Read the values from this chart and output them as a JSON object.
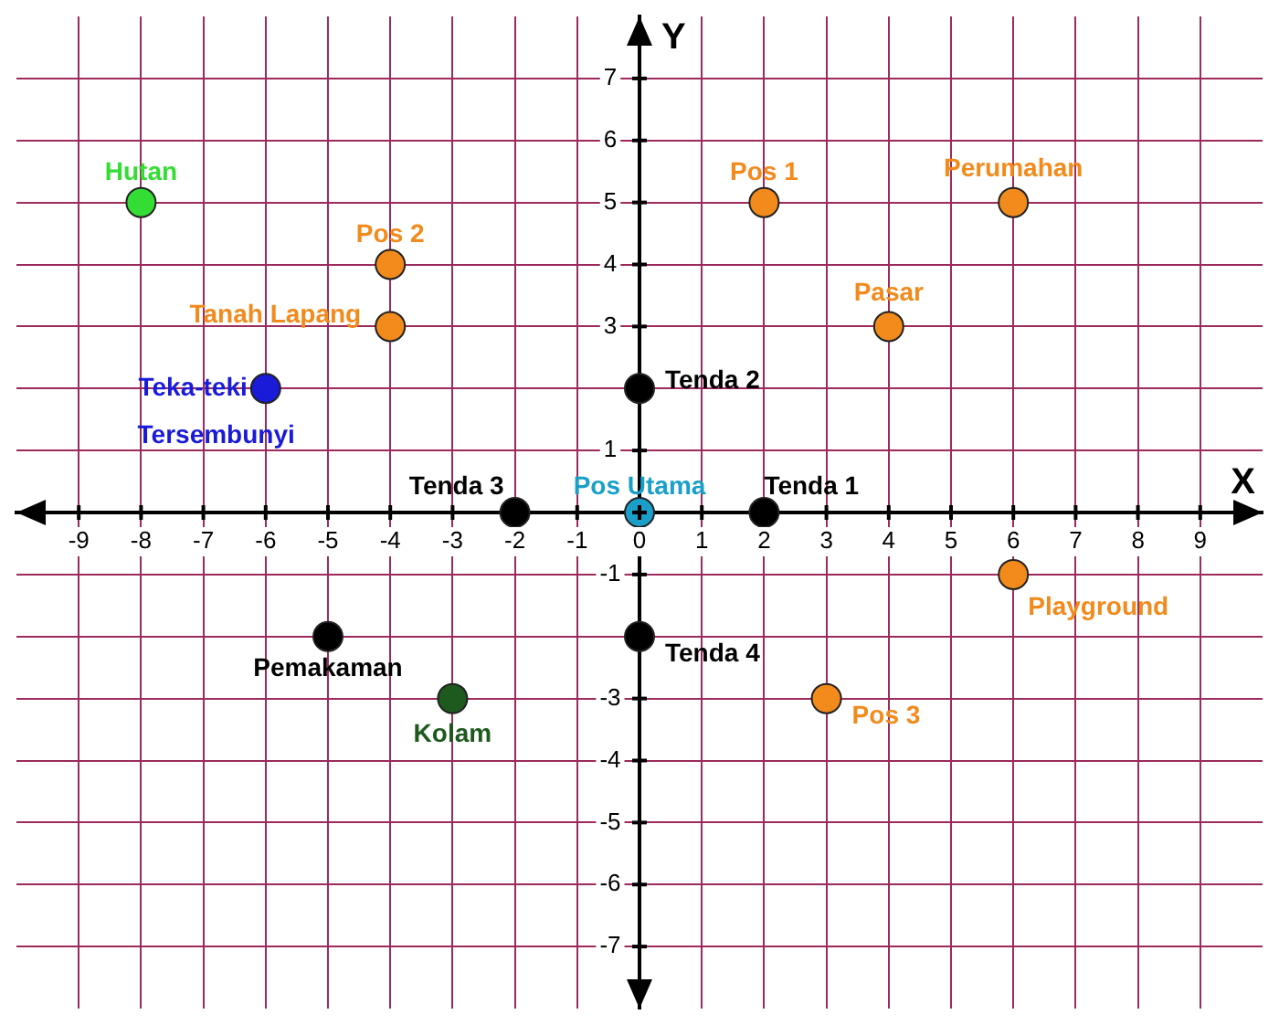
{
  "chart_data": {
    "type": "scatter",
    "xlabel": "X",
    "ylabel": "Y",
    "xlim": [
      -10,
      10
    ],
    "ylim": [
      -8,
      8
    ],
    "xticks": [
      -9,
      -8,
      -7,
      -6,
      -5,
      -4,
      -3,
      -2,
      -1,
      0,
      1,
      2,
      3,
      4,
      5,
      6,
      7,
      8,
      9
    ],
    "yticks": [
      -7,
      -6,
      -5,
      -4,
      -3,
      {
        "value": -2,
        "label": null
      },
      -1,
      {
        "value": 0,
        "label": null
      },
      1,
      {
        "value": 2,
        "label": null
      },
      3,
      4,
      5,
      6,
      7
    ],
    "grid": true,
    "legend": false,
    "marker": "circle",
    "series": [
      {
        "name": "Hutan",
        "color": "#33dd33",
        "x": [
          -8
        ],
        "values": [
          5
        ]
      },
      {
        "name": "Pos 2",
        "color": "#f28a1c",
        "x": [
          -4
        ],
        "values": [
          4
        ]
      },
      {
        "name": "Tanah Lapang",
        "color": "#f28a1c",
        "x": [
          -4
        ],
        "values": [
          3
        ]
      },
      {
        "name": "Teka-teki Tersembunyi",
        "color": "#1a1ad9",
        "x": [
          -6
        ],
        "values": [
          2
        ]
      },
      {
        "name": "Tenda 3",
        "color": "#000000",
        "x": [
          -2
        ],
        "values": [
          0
        ]
      },
      {
        "name": "Pos Utama",
        "color": "#1aa0c8",
        "x": [
          0
        ],
        "values": [
          0
        ]
      },
      {
        "name": "Tenda 2",
        "color": "#000000",
        "x": [
          0
        ],
        "values": [
          2
        ]
      },
      {
        "name": "Tenda 1",
        "color": "#000000",
        "x": [
          2
        ],
        "values": [
          0
        ]
      },
      {
        "name": "Tenda 4",
        "color": "#000000",
        "x": [
          0
        ],
        "values": [
          -2
        ]
      },
      {
        "name": "Pos 1",
        "color": "#f28a1c",
        "x": [
          2
        ],
        "values": [
          5
        ]
      },
      {
        "name": "Perumahan",
        "color": "#f28a1c",
        "x": [
          6
        ],
        "values": [
          5
        ]
      },
      {
        "name": "Pasar",
        "color": "#f28a1c",
        "x": [
          4
        ],
        "values": [
          3
        ]
      },
      {
        "name": "Playground",
        "color": "#f28a1c",
        "x": [
          6
        ],
        "values": [
          -1
        ]
      },
      {
        "name": "Pos 3",
        "color": "#f28a1c",
        "x": [
          3
        ],
        "values": [
          -3
        ]
      },
      {
        "name": "Pemakaman",
        "color": "#000000",
        "x": [
          -5
        ],
        "values": [
          -2
        ]
      },
      {
        "name": "Kolam",
        "color": "#1e5a1e",
        "x": [
          -3
        ],
        "values": [
          -3
        ]
      }
    ]
  }
}
